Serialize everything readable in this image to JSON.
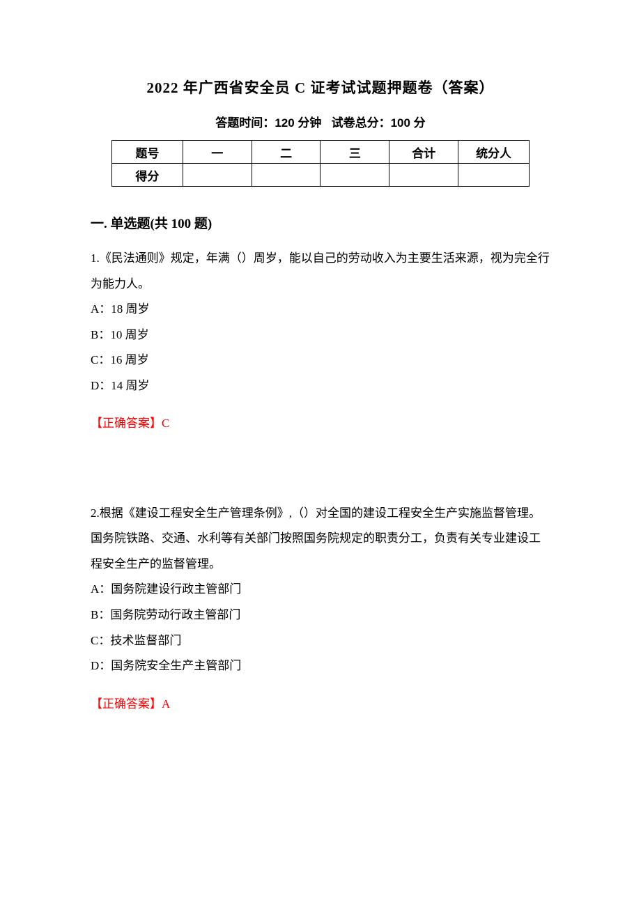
{
  "title": "2022 年广西省安全员 C 证考试试题押题卷（答案）",
  "subtitle_time_label": "答题时间：",
  "subtitle_time_value": "120 分钟",
  "subtitle_score_label": "试卷总分：",
  "subtitle_score_value": "100 分",
  "score_table": {
    "row1": [
      "题号",
      "一",
      "二",
      "三",
      "合计",
      "统分人"
    ],
    "row2_label": "得分",
    "col_widths": [
      "17%",
      "16.5%",
      "16.5%",
      "16.5%",
      "16.5%",
      "17%"
    ]
  },
  "section_heading": "一. 单选题(共 100 题)",
  "questions": [
    {
      "number": "1.",
      "stem": "《民法通则》规定，年满（）周岁，能以自己的劳动收入为主要生活来源，视为完全行为能力人。",
      "options": [
        "A：18 周岁",
        "B：10 周岁",
        "C：16 周岁",
        "D：14 周岁"
      ],
      "answer": "【正确答案】C"
    },
    {
      "number": "2.",
      "stem": "根据《建设工程安全生产管理条例》,（）对全国的建设工程安全生产实施监督管理。国务院铁路、交通、水利等有关部门按照国务院规定的职责分工，负责有关专业建设工程安全生产的监督管理。",
      "options": [
        "A：国务院建设行政主管部门",
        "B：国务院劳动行政主管部门",
        "C：技术监督部门",
        "D：国务院安全生产主管部门"
      ],
      "answer": "【正确答案】A"
    }
  ],
  "colors": {
    "text": "#000000",
    "answer": "#ff0000",
    "border": "#000000",
    "background": "#ffffff"
  },
  "typography": {
    "title_fontsize": 21,
    "subtitle_fontsize": 17,
    "body_fontsize": 17,
    "section_fontsize": 19,
    "line_height": 2.15
  }
}
